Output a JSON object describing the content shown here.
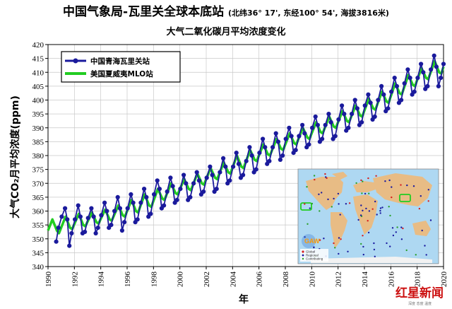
{
  "header": {
    "title": "中国气象局-瓦里关全球本底站",
    "coords": "(北纬36° 17', 东经100° 54', 海拔3816米)",
    "subtitle": "大气二氧化碳月平均浓度变化"
  },
  "watermark": {
    "logo_text": "红星新闻",
    "small_text": "深度 态度 温度"
  },
  "inset": {
    "logo": "GAW",
    "legend": [
      "Global",
      "Regional",
      "Contributing"
    ]
  },
  "colors": {
    "waliguan": "#1a1a9c",
    "mlo": "#22cc22",
    "axis": "#000000"
  },
  "chart_data": {
    "type": "line",
    "title": "中国气象局-瓦里关全球本底站",
    "subtitle": "大气二氧化碳月平均浓度变化",
    "xlabel": "年",
    "ylabel": "大气CO₂月平均浓度(ppm)",
    "ylim": [
      340,
      420
    ],
    "xlim": [
      1990,
      2020
    ],
    "yticks": [
      340,
      345,
      350,
      355,
      360,
      365,
      370,
      375,
      380,
      385,
      390,
      395,
      400,
      405,
      410,
      415,
      420
    ],
    "xticks": [
      "1990",
      "1992",
      "1994",
      "1996",
      "1998",
      "2000",
      "2002",
      "2004",
      "2006",
      "2008",
      "2010",
      "2012",
      "2014",
      "2016",
      "2018",
      "2020"
    ],
    "grid": true,
    "legend_position": "top-left",
    "series": [
      {
        "name": "中国青海瓦里关站",
        "marker": "circle",
        "color": "#1a1a9c",
        "x": [
          1990.62,
          1990.79,
          1991.04,
          1991.29,
          1991.46,
          1991.62,
          1991.79,
          1992.04,
          1992.29,
          1992.46,
          1992.62,
          1992.79,
          1993.04,
          1993.29,
          1993.46,
          1993.62,
          1993.79,
          1994.04,
          1994.29,
          1994.46,
          1994.62,
          1994.79,
          1995.04,
          1995.29,
          1995.46,
          1995.62,
          1995.79,
          1996.04,
          1996.29,
          1996.46,
          1996.62,
          1996.79,
          1997.04,
          1997.29,
          1997.46,
          1997.62,
          1997.79,
          1998.04,
          1998.29,
          1998.46,
          1998.62,
          1998.79,
          1999.04,
          1999.29,
          1999.46,
          1999.62,
          1999.79,
          2000.04,
          2000.29,
          2000.46,
          2000.62,
          2000.79,
          2001.04,
          2001.29,
          2001.46,
          2001.62,
          2001.79,
          2002.04,
          2002.29,
          2002.46,
          2002.62,
          2002.79,
          2003.04,
          2003.29,
          2003.46,
          2003.62,
          2003.79,
          2004.04,
          2004.29,
          2004.46,
          2004.62,
          2004.79,
          2005.04,
          2005.29,
          2005.46,
          2005.62,
          2005.79,
          2006.04,
          2006.29,
          2006.46,
          2006.62,
          2006.79,
          2007.04,
          2007.29,
          2007.46,
          2007.62,
          2007.79,
          2008.04,
          2008.29,
          2008.46,
          2008.62,
          2008.79,
          2009.04,
          2009.29,
          2009.46,
          2009.62,
          2009.79,
          2010.04,
          2010.29,
          2010.46,
          2010.62,
          2010.79,
          2011.04,
          2011.29,
          2011.46,
          2011.62,
          2011.79,
          2012.04,
          2012.29,
          2012.46,
          2012.62,
          2012.79,
          2013.04,
          2013.29,
          2013.46,
          2013.62,
          2013.79,
          2014.04,
          2014.29,
          2014.46,
          2014.62,
          2014.79,
          2015.04,
          2015.29,
          2015.46,
          2015.62,
          2015.79,
          2016.04,
          2016.29,
          2016.46,
          2016.62,
          2016.79,
          2017.04,
          2017.29,
          2017.46,
          2017.62,
          2017.79,
          2018.04,
          2018.29,
          2018.46,
          2018.62,
          2018.79,
          2019.04,
          2019.29,
          2019.46,
          2019.62,
          2019.79,
          2020.0
        ],
        "y": [
          349.0,
          354.0,
          358.0,
          361.0,
          357.0,
          347.5,
          352.0,
          357.0,
          362.0,
          358.0,
          352.0,
          352.5,
          357.5,
          361.0,
          358.0,
          352.0,
          354.0,
          358.5,
          363.0,
          360.0,
          354.0,
          355.0,
          360.0,
          365.0,
          361.0,
          353.0,
          356.0,
          361.0,
          366.0,
          363.0,
          356.0,
          357.0,
          363.0,
          368.0,
          365.0,
          358.0,
          359.0,
          366.0,
          371.0,
          368.0,
          361.0,
          362.0,
          367.0,
          372.0,
          369.0,
          363.0,
          364.0,
          368.0,
          373.0,
          370.0,
          364.0,
          365.0,
          370.0,
          374.0,
          371.0,
          366.0,
          367.0,
          372.0,
          376.0,
          373.0,
          367.0,
          368.0,
          374.0,
          379.0,
          376.0,
          370.0,
          371.0,
          376.0,
          381.0,
          377.0,
          372.0,
          373.0,
          378.0,
          383.0,
          380.0,
          374.0,
          375.0,
          381.0,
          386.0,
          383.0,
          377.0,
          378.0,
          383.0,
          388.0,
          385.0,
          378.5,
          380.0,
          386.0,
          390.0,
          387.0,
          381.0,
          382.0,
          387.0,
          391.0,
          388.0,
          383.0,
          384.0,
          390.0,
          394.0,
          391.0,
          385.0,
          386.0,
          391.0,
          395.0,
          392.0,
          386.0,
          387.0,
          393.0,
          398.0,
          395.0,
          389.0,
          390.0,
          395.0,
          400.0,
          397.0,
          391.0,
          392.0,
          398.0,
          402.0,
          399.0,
          393.0,
          394.0,
          400.0,
          405.0,
          402.0,
          396.0,
          397.0,
          403.0,
          408.0,
          405.0,
          399.0,
          400.0,
          406.0,
          411.0,
          408.0,
          402.0,
          403.0,
          408.0,
          413.0,
          410.0,
          404.0,
          405.0,
          411.0,
          416.0,
          412.0,
          405.0,
          408.0,
          413.0
        ]
      },
      {
        "name": "美国夏威夷MLO站",
        "marker": "none",
        "color": "#22cc22",
        "x": [
          1990.0,
          1990.33,
          1990.67,
          1990.83,
          1991.33,
          1991.67,
          1991.83,
          1992.33,
          1992.67,
          1992.83,
          1993.33,
          1993.67,
          1993.83,
          1994.33,
          1994.67,
          1994.83,
          1995.33,
          1995.67,
          1995.83,
          1996.33,
          1996.67,
          1996.83,
          1997.33,
          1997.67,
          1997.83,
          1998.33,
          1998.67,
          1998.83,
          1999.33,
          1999.67,
          1999.83,
          2000.33,
          2000.67,
          2000.83,
          2001.33,
          2001.67,
          2001.83,
          2002.33,
          2002.67,
          2002.83,
          2003.33,
          2003.67,
          2003.83,
          2004.33,
          2004.67,
          2004.83,
          2005.33,
          2005.67,
          2005.83,
          2006.33,
          2006.67,
          2006.83,
          2007.33,
          2007.67,
          2007.83,
          2008.33,
          2008.67,
          2008.83,
          2009.33,
          2009.67,
          2009.83,
          2010.33,
          2010.67,
          2010.83,
          2011.33,
          2011.67,
          2011.83,
          2012.33,
          2012.67,
          2012.83,
          2013.33,
          2013.67,
          2013.83,
          2014.33,
          2014.67,
          2014.83,
          2015.33,
          2015.67,
          2015.83,
          2016.33,
          2016.67,
          2016.83,
          2017.33,
          2017.67,
          2017.83,
          2018.33,
          2018.67,
          2018.83,
          2019.33,
          2019.67,
          2019.83,
          2020.0
        ],
        "y": [
          353.0,
          357.0,
          353.0,
          352.0,
          358.0,
          354.0,
          353.5,
          359.0,
          355.0,
          354.5,
          359.5,
          356.0,
          355.5,
          360.5,
          357.0,
          356.5,
          362.0,
          358.5,
          358.0,
          364.0,
          360.0,
          359.5,
          366.0,
          362.0,
          361.5,
          368.0,
          364.5,
          364.0,
          370.0,
          366.5,
          366.0,
          371.5,
          368.0,
          367.5,
          373.5,
          370.0,
          369.5,
          375.5,
          372.0,
          371.5,
          377.5,
          374.0,
          373.5,
          380.0,
          376.0,
          375.5,
          382.0,
          378.5,
          378.0,
          384.0,
          380.5,
          380.0,
          386.0,
          382.5,
          382.0,
          388.0,
          384.5,
          384.0,
          390.0,
          386.5,
          386.0,
          392.0,
          388.5,
          388.0,
          394.0,
          390.5,
          390.0,
          396.0,
          392.5,
          392.0,
          398.0,
          394.5,
          394.0,
          400.5,
          397.0,
          396.5,
          403.0,
          399.5,
          399.0,
          406.0,
          402.5,
          402.0,
          409.0,
          405.5,
          405.0,
          411.5,
          408.0,
          407.5,
          414.0,
          410.0,
          409.5,
          412.0
        ]
      }
    ]
  }
}
